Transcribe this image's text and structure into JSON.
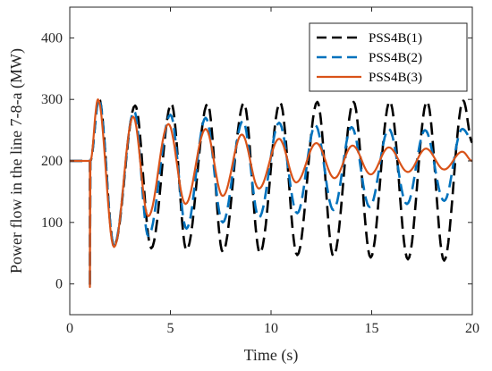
{
  "chart_data": {
    "type": "line",
    "title": "",
    "xlabel": "Time (s)",
    "ylabel": "Power flow in the line 7-8-a (MW)",
    "xlim": [
      0,
      20
    ],
    "ylim": [
      -50,
      450
    ],
    "xticks": [
      0,
      5,
      10,
      15,
      20
    ],
    "yticks": [
      0,
      100,
      200,
      300,
      400
    ],
    "grid": false,
    "legend_position": "top-right",
    "fault_time": 1.0,
    "series": [
      {
        "name": "PSS4B(1)",
        "color": "#000000",
        "style": "dashed",
        "pre_fault_value": 200,
        "dip_value": -5,
        "x": [
          0,
          1.0,
          1.0,
          1.02,
          1.45,
          2.2,
          3.25,
          4.05,
          5.05,
          5.8,
          6.85,
          7.6,
          8.65,
          9.45,
          10.45,
          11.3,
          12.3,
          13.1,
          14.1,
          14.95,
          15.9,
          16.8,
          17.75,
          18.6,
          19.55,
          20.0
        ],
        "y": [
          200,
          200,
          -5,
          200,
          302,
          62,
          290,
          58,
          293,
          55,
          293,
          52,
          294,
          50,
          295,
          47,
          296,
          45,
          296,
          43,
          297,
          40,
          297,
          38,
          298,
          230
        ]
      },
      {
        "name": "PSS4B(2)",
        "color": "#0072BD",
        "style": "dashed",
        "pre_fault_value": 200,
        "dip_value": -5,
        "x": [
          0,
          1.0,
          1.0,
          1.02,
          1.45,
          2.2,
          3.2,
          3.9,
          5.0,
          5.8,
          6.75,
          7.6,
          8.6,
          9.4,
          10.4,
          11.3,
          12.2,
          13.1,
          14.0,
          14.9,
          15.85,
          16.75,
          17.65,
          18.6,
          19.5,
          20.0
        ],
        "y": [
          200,
          200,
          -5,
          200,
          300,
          63,
          281,
          78,
          275,
          90,
          270,
          100,
          265,
          108,
          262,
          115,
          258,
          120,
          255,
          125,
          252,
          130,
          250,
          135,
          252,
          235
        ]
      },
      {
        "name": "PSS4B(3)",
        "color": "#D95319",
        "style": "solid",
        "pre_fault_value": 200,
        "dip_value": -5,
        "x": [
          0,
          1.0,
          1.0,
          1.02,
          1.4,
          2.2,
          3.15,
          3.9,
          4.9,
          5.75,
          6.75,
          7.6,
          8.55,
          9.4,
          10.4,
          11.25,
          12.25,
          13.15,
          14.05,
          14.95,
          15.85,
          16.8,
          17.7,
          18.6,
          19.5,
          20.0
        ],
        "y": [
          200,
          200,
          -5,
          200,
          300,
          60,
          272,
          110,
          260,
          130,
          252,
          143,
          243,
          155,
          236,
          165,
          229,
          172,
          225,
          178,
          222,
          182,
          220,
          186,
          215,
          200
        ]
      }
    ]
  }
}
